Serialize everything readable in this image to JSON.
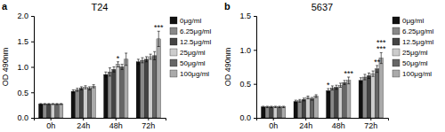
{
  "chart_data": [
    {
      "type": "bar",
      "title": "T24",
      "panel_label": "a",
      "ylabel": "OD 490nm",
      "categories": [
        "0h",
        "24h",
        "48h",
        "72h"
      ],
      "series": [
        {
          "name": "0μg/ml",
          "color": "#111111",
          "values": [
            0.27,
            0.52,
            0.85,
            1.1
          ],
          "errors": [
            0.01,
            0.03,
            0.05,
            0.05
          ]
        },
        {
          "name": "6.25μg/ml",
          "color": "#888888",
          "values": [
            0.27,
            0.55,
            0.9,
            1.13
          ],
          "errors": [
            0.01,
            0.03,
            0.08,
            0.05
          ]
        },
        {
          "name": "12.5μg/ml",
          "color": "#444444",
          "values": [
            0.27,
            0.58,
            0.95,
            1.15
          ],
          "errors": [
            0.01,
            0.03,
            0.05,
            0.05
          ]
        },
        {
          "name": "25μg/ml",
          "color": "#cccccc",
          "values": [
            0.27,
            0.6,
            1.05,
            1.2
          ],
          "errors": [
            0.01,
            0.03,
            0.05,
            0.05
          ]
        },
        {
          "name": "50μg/ml",
          "color": "#666666",
          "values": [
            0.27,
            0.58,
            1.0,
            1.22
          ],
          "errors": [
            0.01,
            0.03,
            0.05,
            0.08
          ]
        },
        {
          "name": "100μg/ml",
          "color": "#aaaaaa",
          "values": [
            0.27,
            0.62,
            1.15,
            1.55
          ],
          "errors": [
            0.01,
            0.03,
            0.12,
            0.15
          ]
        }
      ],
      "ylim": [
        0,
        2.0
      ],
      "yticks": [
        {
          "value": 0,
          "label": "0.0"
        },
        0.5,
        {
          "value": 1,
          "label": "1.0"
        },
        1.5,
        {
          "value": 2,
          "label": "2.0"
        }
      ],
      "legend": "right",
      "annotations": [
        {
          "text": "*",
          "category": "48h",
          "series": "25μg/ml"
        },
        {
          "text": "***",
          "category": "72h",
          "series": "100μg/ml"
        }
      ]
    },
    {
      "type": "bar",
      "title": "5637",
      "panel_label": "b",
      "ylabel": "OD 490nm",
      "categories": [
        "0h",
        "24h",
        "48h",
        "72h"
      ],
      "series": [
        {
          "name": "0μg/ml",
          "color": "#111111",
          "values": [
            0.16,
            0.24,
            0.4,
            0.55
          ],
          "errors": [
            0.01,
            0.02,
            0.03,
            0.04
          ]
        },
        {
          "name": "6.25μg/ml",
          "color": "#888888",
          "values": [
            0.16,
            0.25,
            0.44,
            0.6
          ],
          "errors": [
            0.01,
            0.02,
            0.03,
            0.04
          ]
        },
        {
          "name": "12.5μg/ml",
          "color": "#444444",
          "values": [
            0.16,
            0.27,
            0.45,
            0.62
          ],
          "errors": [
            0.01,
            0.02,
            0.03,
            0.04
          ]
        },
        {
          "name": "25μg/ml",
          "color": "#cccccc",
          "values": [
            0.16,
            0.3,
            0.48,
            0.65
          ],
          "errors": [
            0.01,
            0.02,
            0.03,
            0.04
          ]
        },
        {
          "name": "50μg/ml",
          "color": "#666666",
          "values": [
            0.16,
            0.28,
            0.52,
            0.72
          ],
          "errors": [
            0.01,
            0.02,
            0.03,
            0.05
          ]
        },
        {
          "name": "100μg/ml",
          "color": "#aaaaaa",
          "values": [
            0.16,
            0.32,
            0.55,
            0.88
          ],
          "errors": [
            0.01,
            0.02,
            0.05,
            0.08
          ]
        }
      ],
      "ylim": [
        0,
        1.5
      ],
      "yticks": [
        {
          "value": 0,
          "label": "0.0"
        },
        0.5,
        {
          "value": 1,
          "label": "1.0"
        },
        1.5
      ],
      "legend": "right",
      "annotations": [
        {
          "text": "*",
          "category": "48h",
          "series": "0μg/ml"
        },
        {
          "text": "***",
          "category": "48h",
          "series": "100μg/ml"
        },
        {
          "text": "**",
          "category": "72h",
          "series": "50μg/ml"
        },
        {
          "text": "***",
          "category": "72h",
          "series": "100μg/ml"
        },
        {
          "text": "***",
          "category": "72h",
          "series": "100μg/ml"
        }
      ]
    }
  ]
}
